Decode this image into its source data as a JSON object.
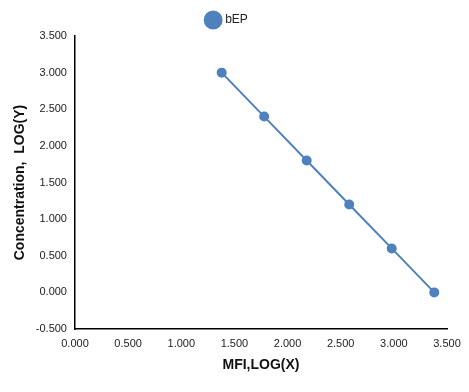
{
  "chart_data": {
    "type": "line",
    "x_label": "MFI,LOG(X)",
    "y_label": "Concentration,  LOG(Y)",
    "x": [
      1.38,
      1.78,
      2.18,
      2.58,
      2.98,
      3.38
    ],
    "series": [
      {
        "name": "bEP",
        "color": "#4f81bd",
        "marker": "circle",
        "line_style": "solid",
        "values": [
          3.0,
          2.4,
          1.8,
          1.2,
          0.6,
          0.0
        ]
      }
    ],
    "xlim": [
      0,
      3.5
    ],
    "xticks": [
      {
        "value": 0,
        "label": "0.000"
      },
      {
        "value": 0.5,
        "label": "0.500"
      },
      {
        "value": 1,
        "label": "1.000"
      },
      {
        "value": 1.5,
        "label": "1.500"
      },
      {
        "value": 2,
        "label": "2.000"
      },
      {
        "value": 2.5,
        "label": "2.500"
      },
      {
        "value": 3,
        "label": "3.000"
      },
      {
        "value": 3.5,
        "label": "3.500"
      }
    ],
    "ylim": [
      -0.5,
      3.5
    ],
    "yticks": [
      {
        "value": -0.5,
        "label": "-0.500"
      },
      {
        "value": 0,
        "label": "0.000"
      },
      {
        "value": 0.5,
        "label": "0.500"
      },
      {
        "value": 1,
        "label": "1.000"
      },
      {
        "value": 1.5,
        "label": "1.500"
      },
      {
        "value": 2,
        "label": "2.000"
      },
      {
        "value": 2.5,
        "label": "2.500"
      },
      {
        "value": 3,
        "label": "3.000"
      },
      {
        "value": 3.5,
        "label": "3.500"
      }
    ],
    "grid": false,
    "legend": "top"
  }
}
